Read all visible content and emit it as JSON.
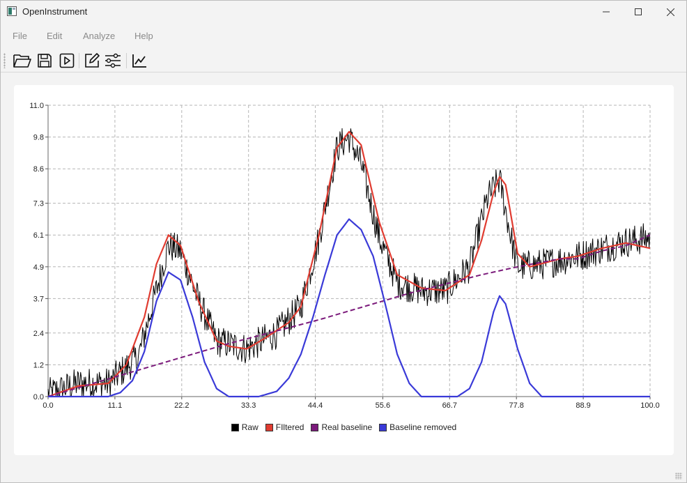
{
  "window": {
    "title": "OpenInstrument"
  },
  "menu": {
    "items": [
      "File",
      "Edit",
      "Analyze",
      "Help"
    ]
  },
  "toolbar": {
    "buttons": [
      "open-folder-icon",
      "save-icon",
      "run-icon",
      "edit-icon",
      "settings-sliders-icon",
      "chart-icon"
    ]
  },
  "chart_data": {
    "type": "line",
    "title": "",
    "xlabel": "",
    "ylabel": "",
    "xlim": [
      0.0,
      100.0
    ],
    "ylim": [
      0.0,
      11.0
    ],
    "x_ticks": [
      "0.0",
      "11.1",
      "22.2",
      "33.3",
      "44.4",
      "55.6",
      "66.7",
      "77.8",
      "88.9",
      "100.0"
    ],
    "y_ticks": [
      "0.0",
      "1.2",
      "2.4",
      "3.7",
      "4.9",
      "6.1",
      "7.3",
      "8.6",
      "9.8",
      "11.0"
    ],
    "grid": true,
    "legend_position": "bottom",
    "series": [
      {
        "name": "Raw",
        "color": "#000000",
        "style": "noisy",
        "x": [
          0,
          5,
          10,
          15,
          20,
          22,
          25,
          28,
          33,
          38,
          42,
          45,
          48,
          50,
          52,
          55,
          58,
          62,
          66,
          70,
          73,
          75,
          77,
          78,
          82,
          88,
          95,
          100
        ],
        "y": [
          0.1,
          0.5,
          0.5,
          1.5,
          5.7,
          5.5,
          3.6,
          2.1,
          1.8,
          2.4,
          3.4,
          6.0,
          9.4,
          9.8,
          8.8,
          6.0,
          4.3,
          4.0,
          4.0,
          4.9,
          7.5,
          8.2,
          5.9,
          4.9,
          5.0,
          5.3,
          5.8,
          6.0
        ]
      },
      {
        "name": "FIltered",
        "color": "#e03c31",
        "x": [
          0,
          5,
          10,
          13,
          16,
          18,
          20,
          22,
          25,
          28,
          30,
          33,
          36,
          40,
          42,
          45,
          48,
          50,
          52,
          55,
          58,
          62,
          66,
          70,
          72,
          74,
          75,
          76,
          78,
          80,
          85,
          88,
          92,
          96,
          100
        ],
        "y": [
          0.0,
          0.4,
          0.5,
          1.2,
          3.0,
          5.0,
          6.1,
          5.7,
          3.6,
          2.1,
          1.9,
          1.8,
          2.2,
          2.8,
          3.4,
          6.1,
          9.4,
          10.0,
          9.5,
          6.6,
          4.6,
          4.1,
          4.0,
          4.6,
          5.9,
          7.7,
          8.3,
          8.0,
          5.4,
          4.9,
          5.2,
          5.3,
          5.6,
          5.8,
          5.6
        ]
      },
      {
        "name": "Real baseline",
        "color": "#7b1a7b",
        "dashed": true,
        "x": [
          0,
          12,
          30,
          45,
          60,
          72,
          78,
          85,
          88,
          92,
          96,
          100
        ],
        "y": [
          0.0,
          0.8,
          2.0,
          2.9,
          3.9,
          4.6,
          4.9,
          5.2,
          5.2,
          5.5,
          5.7,
          6.1
        ]
      },
      {
        "name": "Baseline removed",
        "color": "#3a3ad8",
        "x": [
          0,
          10,
          12,
          14,
          16,
          18,
          20,
          22,
          24,
          26,
          28,
          30,
          35,
          38,
          40,
          42,
          44,
          46,
          48,
          50,
          52,
          54,
          56,
          58,
          60,
          62,
          64,
          68,
          70,
          72,
          74,
          75,
          76,
          78,
          80,
          82,
          100
        ],
        "y": [
          0.0,
          0.0,
          0.15,
          0.6,
          1.7,
          3.6,
          4.7,
          4.4,
          3.0,
          1.3,
          0.3,
          0.0,
          0.0,
          0.2,
          0.7,
          1.6,
          3.0,
          4.6,
          6.1,
          6.7,
          6.3,
          5.3,
          3.5,
          1.6,
          0.5,
          0.0,
          0.0,
          0.0,
          0.3,
          1.3,
          3.2,
          3.8,
          3.5,
          1.8,
          0.5,
          0.0,
          0.0
        ]
      }
    ]
  }
}
